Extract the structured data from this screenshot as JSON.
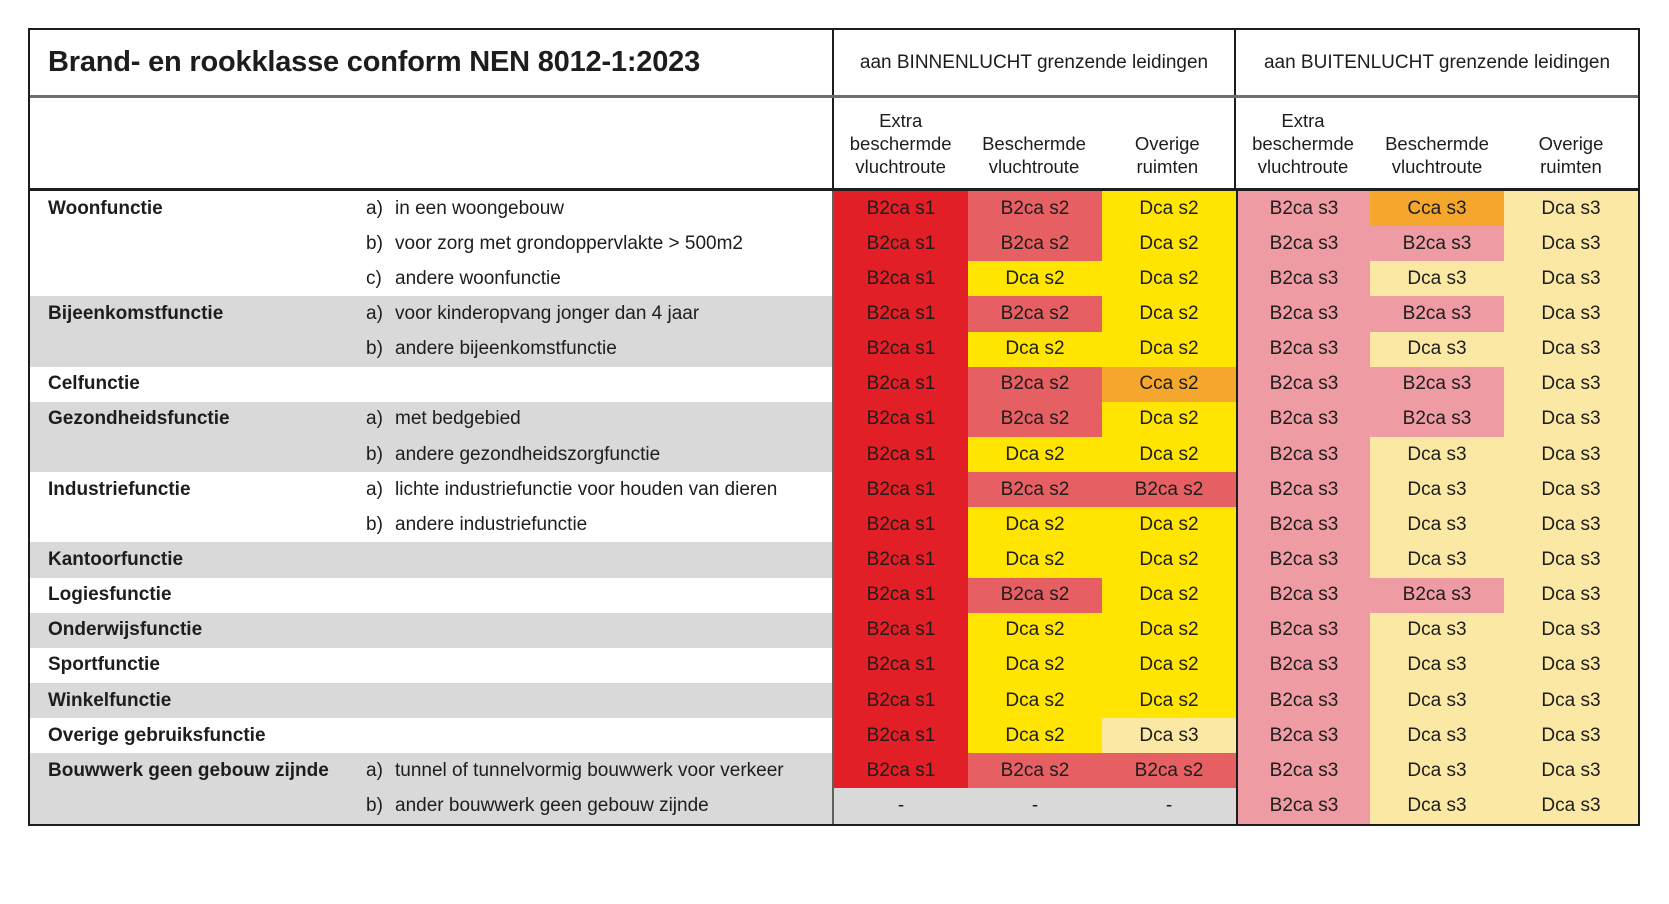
{
  "title": "Brand- en rookklasse conform NEN 8012-1:2023",
  "sections": [
    {
      "id": "binnenlucht",
      "label": "aan BINNENLUCHT grenzende leidingen"
    },
    {
      "id": "buitenlucht",
      "label": "aan BUITENLUCHT grenzende leidingen"
    }
  ],
  "column_headers": [
    [
      "Extra",
      "beschermde",
      "vluchtroute"
    ],
    [
      "Beschermde",
      "vluchtroute"
    ],
    [
      "Overige",
      "ruimten"
    ]
  ],
  "colors": {
    "red": "#e21e26",
    "salmon": "#e65f63",
    "yellow": "#ffe500",
    "orange": "#f5a62d",
    "pink": "#ef9ba4",
    "cream": "#fae8a4",
    "row_gray": "#d9d9d9",
    "row_white": "#ffffff",
    "text": "#1d1d1b"
  },
  "rows": [
    {
      "function": "Woonfunctie",
      "item": "a)",
      "description": "in een woongebouw",
      "shade": "white",
      "cells": [
        {
          "text": "B2ca s1",
          "color": "red"
        },
        {
          "text": "B2ca s2",
          "color": "salmon"
        },
        {
          "text": "Dca s2",
          "color": "yellow"
        },
        {
          "text": "B2ca s3",
          "color": "pink"
        },
        {
          "text": "Cca s3",
          "color": "orange"
        },
        {
          "text": "Dca s3",
          "color": "cream"
        }
      ]
    },
    {
      "function": "",
      "item": "b)",
      "description": "voor zorg met grondoppervlakte > 500m2",
      "shade": "white",
      "cells": [
        {
          "text": "B2ca s1",
          "color": "red"
        },
        {
          "text": "B2ca s2",
          "color": "salmon"
        },
        {
          "text": "Dca s2",
          "color": "yellow"
        },
        {
          "text": "B2ca s3",
          "color": "pink"
        },
        {
          "text": "B2ca s3",
          "color": "pink"
        },
        {
          "text": "Dca s3",
          "color": "cream"
        }
      ]
    },
    {
      "function": "",
      "item": "c)",
      "description": "andere woonfunctie",
      "shade": "white",
      "cells": [
        {
          "text": "B2ca s1",
          "color": "red"
        },
        {
          "text": "Dca s2",
          "color": "yellow"
        },
        {
          "text": "Dca s2",
          "color": "yellow"
        },
        {
          "text": "B2ca s3",
          "color": "pink"
        },
        {
          "text": "Dca s3",
          "color": "cream"
        },
        {
          "text": "Dca s3",
          "color": "cream"
        }
      ]
    },
    {
      "function": "Bijeenkomstfunctie",
      "item": "a)",
      "description": "voor kinderopvang jonger dan 4 jaar",
      "shade": "gray",
      "cells": [
        {
          "text": "B2ca s1",
          "color": "red"
        },
        {
          "text": "B2ca s2",
          "color": "salmon"
        },
        {
          "text": "Dca s2",
          "color": "yellow"
        },
        {
          "text": "B2ca s3",
          "color": "pink"
        },
        {
          "text": "B2ca s3",
          "color": "pink"
        },
        {
          "text": "Dca s3",
          "color": "cream"
        }
      ]
    },
    {
      "function": "",
      "item": "b)",
      "description": "andere bijeenkomstfunctie",
      "shade": "gray",
      "cells": [
        {
          "text": "B2ca s1",
          "color": "red"
        },
        {
          "text": "Dca s2",
          "color": "yellow"
        },
        {
          "text": "Dca s2",
          "color": "yellow"
        },
        {
          "text": "B2ca s3",
          "color": "pink"
        },
        {
          "text": "Dca s3",
          "color": "cream"
        },
        {
          "text": "Dca s3",
          "color": "cream"
        }
      ]
    },
    {
      "function": "Celfunctie",
      "item": "",
      "description": "",
      "shade": "white",
      "cells": [
        {
          "text": "B2ca s1",
          "color": "red"
        },
        {
          "text": "B2ca s2",
          "color": "salmon"
        },
        {
          "text": "Cca s2",
          "color": "orange"
        },
        {
          "text": "B2ca s3",
          "color": "pink"
        },
        {
          "text": "B2ca s3",
          "color": "pink"
        },
        {
          "text": "Dca s3",
          "color": "cream"
        }
      ]
    },
    {
      "function": "Gezondheidsfunctie",
      "item": "a)",
      "description": "met bedgebied",
      "shade": "gray",
      "cells": [
        {
          "text": "B2ca s1",
          "color": "red"
        },
        {
          "text": "B2ca s2",
          "color": "salmon"
        },
        {
          "text": "Dca s2",
          "color": "yellow"
        },
        {
          "text": "B2ca s3",
          "color": "pink"
        },
        {
          "text": "B2ca s3",
          "color": "pink"
        },
        {
          "text": "Dca s3",
          "color": "cream"
        }
      ]
    },
    {
      "function": "",
      "item": "b)",
      "description": "andere gezondheidszorgfunctie",
      "shade": "gray",
      "cells": [
        {
          "text": "B2ca s1",
          "color": "red"
        },
        {
          "text": "Dca s2",
          "color": "yellow"
        },
        {
          "text": "Dca s2",
          "color": "yellow"
        },
        {
          "text": "B2ca s3",
          "color": "pink"
        },
        {
          "text": "Dca s3",
          "color": "cream"
        },
        {
          "text": "Dca s3",
          "color": "cream"
        }
      ]
    },
    {
      "function": "Industriefunctie",
      "item": "a)",
      "description": "lichte industriefunctie voor houden van dieren",
      "shade": "white",
      "cells": [
        {
          "text": "B2ca s1",
          "color": "red"
        },
        {
          "text": "B2ca s2",
          "color": "salmon"
        },
        {
          "text": "B2ca s2",
          "color": "salmon"
        },
        {
          "text": "B2ca s3",
          "color": "pink"
        },
        {
          "text": "Dca s3",
          "color": "cream"
        },
        {
          "text": "Dca s3",
          "color": "cream"
        }
      ]
    },
    {
      "function": "",
      "item": "b)",
      "description": "andere industriefunctie",
      "shade": "white",
      "cells": [
        {
          "text": "B2ca s1",
          "color": "red"
        },
        {
          "text": "Dca s2",
          "color": "yellow"
        },
        {
          "text": "Dca s2",
          "color": "yellow"
        },
        {
          "text": "B2ca s3",
          "color": "pink"
        },
        {
          "text": "Dca s3",
          "color": "cream"
        },
        {
          "text": "Dca s3",
          "color": "cream"
        }
      ]
    },
    {
      "function": "Kantoorfunctie",
      "item": "",
      "description": "",
      "shade": "gray",
      "cells": [
        {
          "text": "B2ca s1",
          "color": "red"
        },
        {
          "text": "Dca s2",
          "color": "yellow"
        },
        {
          "text": "Dca s2",
          "color": "yellow"
        },
        {
          "text": "B2ca s3",
          "color": "pink"
        },
        {
          "text": "Dca s3",
          "color": "cream"
        },
        {
          "text": "Dca s3",
          "color": "cream"
        }
      ]
    },
    {
      "function": "Logiesfunctie",
      "item": "",
      "description": "",
      "shade": "white",
      "cells": [
        {
          "text": "B2ca s1",
          "color": "red"
        },
        {
          "text": "B2ca s2",
          "color": "salmon"
        },
        {
          "text": "Dca s2",
          "color": "yellow"
        },
        {
          "text": "B2ca s3",
          "color": "pink"
        },
        {
          "text": "B2ca s3",
          "color": "pink"
        },
        {
          "text": "Dca s3",
          "color": "cream"
        }
      ]
    },
    {
      "function": "Onderwijsfunctie",
      "item": "",
      "description": "",
      "shade": "gray",
      "cells": [
        {
          "text": "B2ca s1",
          "color": "red"
        },
        {
          "text": "Dca s2",
          "color": "yellow"
        },
        {
          "text": "Dca s2",
          "color": "yellow"
        },
        {
          "text": "B2ca s3",
          "color": "pink"
        },
        {
          "text": "Dca s3",
          "color": "cream"
        },
        {
          "text": "Dca s3",
          "color": "cream"
        }
      ]
    },
    {
      "function": "Sportfunctie",
      "item": "",
      "description": "",
      "shade": "white",
      "cells": [
        {
          "text": "B2ca s1",
          "color": "red"
        },
        {
          "text": "Dca s2",
          "color": "yellow"
        },
        {
          "text": "Dca s2",
          "color": "yellow"
        },
        {
          "text": "B2ca s3",
          "color": "pink"
        },
        {
          "text": "Dca s3",
          "color": "cream"
        },
        {
          "text": "Dca s3",
          "color": "cream"
        }
      ]
    },
    {
      "function": "Winkelfunctie",
      "item": "",
      "description": "",
      "shade": "gray",
      "cells": [
        {
          "text": "B2ca s1",
          "color": "red"
        },
        {
          "text": "Dca s2",
          "color": "yellow"
        },
        {
          "text": "Dca s2",
          "color": "yellow"
        },
        {
          "text": "B2ca s3",
          "color": "pink"
        },
        {
          "text": "Dca s3",
          "color": "cream"
        },
        {
          "text": "Dca s3",
          "color": "cream"
        }
      ]
    },
    {
      "function": "Overige gebruiksfunctie",
      "item": "",
      "description": "",
      "shade": "white",
      "cells": [
        {
          "text": "B2ca s1",
          "color": "red"
        },
        {
          "text": "Dca s2",
          "color": "yellow"
        },
        {
          "text": "Dca s3",
          "color": "cream"
        },
        {
          "text": "B2ca s3",
          "color": "pink"
        },
        {
          "text": "Dca s3",
          "color": "cream"
        },
        {
          "text": "Dca s3",
          "color": "cream"
        }
      ]
    },
    {
      "function": "Bouwwerk geen gebouw zijnde",
      "item": "a)",
      "description": "tunnel of tunnelvormig bouwwerk voor verkeer",
      "shade": "gray",
      "cells": [
        {
          "text": "B2ca s1",
          "color": "red"
        },
        {
          "text": "B2ca s2",
          "color": "salmon"
        },
        {
          "text": "B2ca s2",
          "color": "salmon"
        },
        {
          "text": "B2ca s3",
          "color": "pink"
        },
        {
          "text": "Dca s3",
          "color": "cream"
        },
        {
          "text": "Dca s3",
          "color": "cream"
        }
      ]
    },
    {
      "function": "",
      "item": "b)",
      "description": "ander bouwwerk geen gebouw zijnde",
      "shade": "gray",
      "cells": [
        {
          "text": "-",
          "color": "row_gray"
        },
        {
          "text": "-",
          "color": "row_gray"
        },
        {
          "text": "-",
          "color": "row_gray"
        },
        {
          "text": "B2ca s3",
          "color": "pink"
        },
        {
          "text": "Dca s3",
          "color": "cream"
        },
        {
          "text": "Dca s3",
          "color": "cream"
        }
      ]
    }
  ]
}
